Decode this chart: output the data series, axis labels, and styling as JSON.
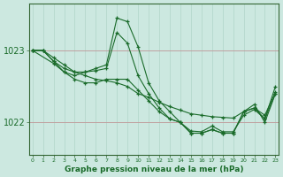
{
  "background_color": "#cce8e0",
  "line_color": "#1a6b2a",
  "marker_color": "#1a6b2a",
  "xlabel": "Graphe pression niveau de la mer (hPa)",
  "yticks": [
    1022,
    1023
  ],
  "ylim": [
    1021.55,
    1023.65
  ],
  "xlim": [
    -0.3,
    23.3
  ],
  "xticks": [
    0,
    1,
    2,
    3,
    4,
    5,
    6,
    7,
    8,
    9,
    10,
    11,
    12,
    13,
    14,
    15,
    16,
    17,
    18,
    19,
    20,
    21,
    22,
    23
  ],
  "series": [
    {
      "x": [
        0,
        1,
        2,
        3,
        4,
        5,
        6,
        7,
        8,
        9,
        10,
        11,
        12,
        13,
        14,
        15,
        16,
        17,
        18,
        19,
        20,
        21,
        22,
        23
      ],
      "y": [
        1023.0,
        1023.0,
        1022.85,
        1022.75,
        1022.7,
        1022.7,
        1022.75,
        1022.8,
        1023.45,
        1023.4,
        1023.05,
        1022.55,
        1022.3,
        1022.15,
        1022.0,
        1021.85,
        1021.85,
        1021.9,
        1021.85,
        1021.85,
        1022.15,
        1022.25,
        1022.0,
        1022.4
      ]
    },
    {
      "x": [
        0,
        1,
        2,
        3,
        4,
        5,
        6,
        7,
        8,
        9,
        10,
        11,
        12,
        13,
        14,
        15,
        16,
        17,
        18,
        19,
        20,
        21,
        22,
        23
      ],
      "y": [
        1023.0,
        1023.0,
        1022.85,
        1022.7,
        1022.65,
        1022.7,
        1022.72,
        1022.75,
        1023.25,
        1023.1,
        1022.65,
        1022.4,
        1022.2,
        1022.05,
        1022.0,
        1021.85,
        1021.85,
        1021.9,
        1021.85,
        1021.85,
        1022.15,
        1022.2,
        1022.05,
        1022.4
      ]
    },
    {
      "x": [
        0,
        2,
        3,
        4,
        5,
        6,
        7,
        8,
        9,
        10,
        11,
        12,
        13,
        14,
        15,
        16,
        17,
        18,
        19,
        20,
        21,
        22,
        23
      ],
      "y": [
        1023.0,
        1022.82,
        1022.7,
        1022.6,
        1022.55,
        1022.55,
        1022.6,
        1022.6,
        1022.6,
        1022.45,
        1022.3,
        1022.15,
        1022.05,
        1022.0,
        1021.88,
        1021.87,
        1021.95,
        1021.87,
        1021.87,
        1022.1,
        1022.18,
        1022.05,
        1022.5
      ]
    },
    {
      "x": [
        0,
        1,
        2,
        3,
        4,
        5,
        6,
        7,
        8,
        9,
        10,
        11,
        12,
        13,
        14,
        15,
        16,
        17,
        18,
        19,
        20,
        21,
        22,
        23
      ],
      "y": [
        1023.0,
        1023.0,
        1022.9,
        1022.8,
        1022.7,
        1022.65,
        1022.6,
        1022.58,
        1022.55,
        1022.5,
        1022.4,
        1022.35,
        1022.28,
        1022.22,
        1022.17,
        1022.12,
        1022.1,
        1022.08,
        1022.07,
        1022.06,
        1022.15,
        1022.2,
        1022.1,
        1022.42
      ]
    }
  ],
  "vgrid_color": "#b0d4c8",
  "hgrid_color": "#c0a0a0",
  "spine_color": "#336633"
}
